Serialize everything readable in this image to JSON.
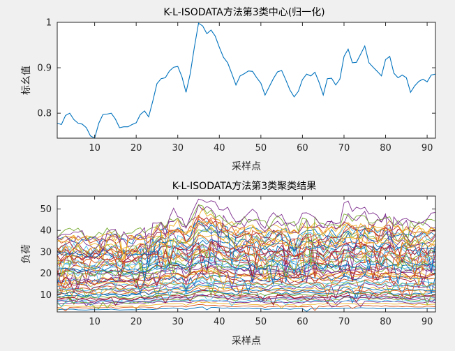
{
  "chart_data": [
    {
      "type": "line",
      "title": "K-L-ISODATA方法第3类中心(归一化)",
      "xlabel": "采样点",
      "ylabel": "标幺值",
      "xlim": [
        1,
        92
      ],
      "ylim": [
        0.745,
        1.0
      ],
      "xticks": [
        10,
        20,
        30,
        40,
        50,
        60,
        70,
        80,
        90
      ],
      "yticks": [
        0.8,
        0.9,
        1
      ],
      "yticklabels": [
        "0.8",
        "0.9",
        "1"
      ],
      "grid": false,
      "series": [
        {
          "color": "#0072bd",
          "x": [
            1,
            2,
            3,
            4,
            5,
            6,
            7,
            8,
            9,
            10,
            11,
            12,
            13,
            14,
            15,
            16,
            17,
            18,
            19,
            20,
            21,
            22,
            23,
            24,
            25,
            26,
            27,
            28,
            29,
            30,
            31,
            32,
            33,
            34,
            35,
            36,
            37,
            38,
            39,
            40,
            41,
            42,
            43,
            44,
            45,
            46,
            47,
            48,
            49,
            50,
            51,
            52,
            53,
            54,
            55,
            56,
            57,
            58,
            59,
            60,
            61,
            62,
            63,
            64,
            65,
            66,
            67,
            68,
            69,
            70,
            71,
            72,
            73,
            74,
            75,
            76,
            77,
            78,
            79,
            80,
            81,
            82,
            83,
            84,
            85,
            86,
            87,
            88,
            89,
            90,
            91,
            92
          ],
          "values": [
            0.778,
            0.775,
            0.795,
            0.8,
            0.786,
            0.778,
            0.776,
            0.768,
            0.75,
            0.745,
            0.778,
            0.797,
            0.798,
            0.8,
            0.787,
            0.768,
            0.77,
            0.77,
            0.775,
            0.779,
            0.797,
            0.805,
            0.792,
            0.827,
            0.865,
            0.876,
            0.878,
            0.893,
            0.901,
            0.903,
            0.88,
            0.846,
            0.887,
            0.945,
            0.998,
            0.992,
            0.975,
            0.983,
            0.97,
            0.945,
            0.923,
            0.911,
            0.887,
            0.862,
            0.882,
            0.887,
            0.893,
            0.892,
            0.878,
            0.866,
            0.84,
            0.858,
            0.876,
            0.891,
            0.894,
            0.873,
            0.851,
            0.836,
            0.848,
            0.874,
            0.886,
            0.882,
            0.89,
            0.868,
            0.84,
            0.876,
            0.877,
            0.862,
            0.875,
            0.925,
            0.941,
            0.911,
            0.912,
            0.93,
            0.948,
            0.911,
            0.901,
            0.892,
            0.882,
            0.918,
            0.925,
            0.888,
            0.878,
            0.884,
            0.878,
            0.846,
            0.86,
            0.87,
            0.875,
            0.869,
            0.884,
            0.886
          ]
        }
      ]
    },
    {
      "type": "line",
      "title": "K-L-ISODATA方法第3类聚类结果",
      "xlabel": "采样点",
      "ylabel": "负荷",
      "xlim": [
        1,
        92
      ],
      "ylim": [
        2,
        56
      ],
      "xticks": [
        10,
        20,
        30,
        40,
        50,
        60,
        70,
        80,
        90
      ],
      "yticks": [
        10,
        20,
        30,
        40,
        50
      ],
      "grid": false,
      "series_count": 60,
      "series_levels": [
        3.5,
        4.5,
        5.5,
        6.5,
        7.5,
        8.5,
        9.5,
        10.5,
        11.5,
        12.5,
        13.5,
        14.5,
        15.5,
        16.5,
        17.5,
        18.5,
        19.5,
        20.5,
        21.5,
        22.5,
        23.5,
        24.5,
        25.5,
        26.5,
        27.5,
        28.5,
        29.5,
        30.5,
        31.5,
        32.5,
        33.5,
        34.5,
        35.5,
        36.5,
        37.5,
        38.5,
        39.5,
        40.5,
        41.5,
        43,
        7,
        9,
        12,
        15,
        18,
        21,
        24,
        27,
        30,
        33,
        36,
        39,
        45,
        10,
        14,
        19,
        23,
        28,
        34,
        8
      ],
      "palette": [
        "#0072bd",
        "#d95319",
        "#edb120",
        "#7e2f8e",
        "#77ac30",
        "#4dbeee",
        "#a2142f"
      ]
    }
  ]
}
